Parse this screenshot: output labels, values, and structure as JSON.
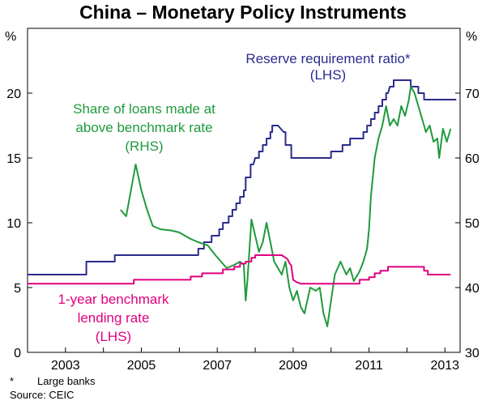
{
  "chart_data": {
    "type": "line",
    "title": "China – Monetary Policy Instruments",
    "left_axis": {
      "unit": "%",
      "ylim": [
        0,
        25
      ],
      "ticks": [
        0,
        5,
        10,
        15,
        20
      ]
    },
    "right_axis": {
      "unit": "%",
      "ylim": [
        30,
        80
      ],
      "ticks": [
        30,
        40,
        50,
        60,
        70
      ]
    },
    "x_range": [
      2002,
      2013.4
    ],
    "x_ticks": [
      "2003",
      "2005",
      "2007",
      "2009",
      "2011",
      "2013"
    ],
    "series": [
      {
        "name": "Reserve requirement ratio*",
        "axis_note": "(LHS)",
        "axis": "left",
        "color": "#2b2b8c",
        "points": [
          [
            2002.0,
            6.0
          ],
          [
            2003.55,
            6.0
          ],
          [
            2003.55,
            7.0
          ],
          [
            2004.0,
            7.0
          ],
          [
            2004.3,
            7.0
          ],
          [
            2004.3,
            7.5
          ],
          [
            2006.5,
            7.5
          ],
          [
            2006.5,
            8.0
          ],
          [
            2006.65,
            8.0
          ],
          [
            2006.65,
            8.5
          ],
          [
            2006.85,
            8.5
          ],
          [
            2006.85,
            9.0
          ],
          [
            2007.05,
            9.0
          ],
          [
            2007.05,
            9.5
          ],
          [
            2007.15,
            9.5
          ],
          [
            2007.15,
            10.0
          ],
          [
            2007.3,
            10.0
          ],
          [
            2007.3,
            10.5
          ],
          [
            2007.4,
            10.5
          ],
          [
            2007.4,
            11.0
          ],
          [
            2007.5,
            11.0
          ],
          [
            2007.5,
            11.5
          ],
          [
            2007.6,
            11.5
          ],
          [
            2007.6,
            12.0
          ],
          [
            2007.7,
            12.0
          ],
          [
            2007.7,
            12.5
          ],
          [
            2007.75,
            12.5
          ],
          [
            2007.75,
            13.5
          ],
          [
            2007.88,
            13.5
          ],
          [
            2007.88,
            14.5
          ],
          [
            2007.95,
            14.5
          ],
          [
            2008.0,
            15.0
          ],
          [
            2008.1,
            15.0
          ],
          [
            2008.1,
            15.5
          ],
          [
            2008.2,
            15.5
          ],
          [
            2008.2,
            16.0
          ],
          [
            2008.3,
            16.0
          ],
          [
            2008.3,
            16.5
          ],
          [
            2008.4,
            16.5
          ],
          [
            2008.4,
            17.0
          ],
          [
            2008.45,
            17.0
          ],
          [
            2008.45,
            17.5
          ],
          [
            2008.6,
            17.5
          ],
          [
            2008.75,
            17.0
          ],
          [
            2008.8,
            17.0
          ],
          [
            2008.8,
            16.0
          ],
          [
            2008.95,
            16.0
          ],
          [
            2008.95,
            15.0
          ],
          [
            2010.0,
            15.0
          ],
          [
            2010.0,
            15.5
          ],
          [
            2010.1,
            15.5
          ],
          [
            2010.3,
            15.5
          ],
          [
            2010.3,
            16.0
          ],
          [
            2010.5,
            16.0
          ],
          [
            2010.5,
            16.5
          ],
          [
            2010.85,
            16.5
          ],
          [
            2010.85,
            17.0
          ],
          [
            2010.95,
            17.0
          ],
          [
            2010.95,
            17.5
          ],
          [
            2011.05,
            17.5
          ],
          [
            2011.05,
            18.0
          ],
          [
            2011.15,
            18.0
          ],
          [
            2011.15,
            18.5
          ],
          [
            2011.25,
            18.5
          ],
          [
            2011.25,
            19.0
          ],
          [
            2011.35,
            19.0
          ],
          [
            2011.35,
            19.5
          ],
          [
            2011.45,
            19.5
          ],
          [
            2011.45,
            20.0
          ],
          [
            2011.5,
            20.0
          ],
          [
            2011.55,
            20.5
          ],
          [
            2011.65,
            20.5
          ],
          [
            2011.65,
            21.0
          ],
          [
            2012.1,
            21.0
          ],
          [
            2012.1,
            20.5
          ],
          [
            2012.3,
            20.5
          ],
          [
            2012.3,
            20.0
          ],
          [
            2012.45,
            20.0
          ],
          [
            2012.45,
            19.5
          ],
          [
            2013.3,
            19.5
          ]
        ]
      },
      {
        "name": "Share of loans made at above benchmark rate",
        "axis_note": "(RHS)",
        "axis": "right",
        "color": "#1f9a3c",
        "points": [
          [
            2004.45,
            52.0
          ],
          [
            2004.6,
            51.0
          ],
          [
            2004.85,
            59.0
          ],
          [
            2005.0,
            55.0
          ],
          [
            2005.15,
            52.0
          ],
          [
            2005.3,
            49.5
          ],
          [
            2005.5,
            49.0
          ],
          [
            2005.8,
            48.8
          ],
          [
            2006.0,
            48.5
          ],
          [
            2006.3,
            47.5
          ],
          [
            2006.5,
            47.0
          ],
          [
            2006.75,
            46.5
          ],
          [
            2006.95,
            45.0
          ],
          [
            2007.1,
            44.0
          ],
          [
            2007.25,
            43.0
          ],
          [
            2007.45,
            43.5
          ],
          [
            2007.6,
            44.0
          ],
          [
            2007.7,
            43.5
          ],
          [
            2007.75,
            38.0
          ],
          [
            2007.8,
            41.5
          ],
          [
            2007.9,
            50.5
          ],
          [
            2008.0,
            48.0
          ],
          [
            2008.1,
            45.5
          ],
          [
            2008.2,
            47.0
          ],
          [
            2008.3,
            50.0
          ],
          [
            2008.4,
            47.0
          ],
          [
            2008.5,
            44.0
          ],
          [
            2008.6,
            43.0
          ],
          [
            2008.7,
            42.0
          ],
          [
            2008.8,
            44.0
          ],
          [
            2008.9,
            40.0
          ],
          [
            2009.0,
            38.0
          ],
          [
            2009.1,
            39.5
          ],
          [
            2009.2,
            37.0
          ],
          [
            2009.3,
            36.0
          ],
          [
            2009.45,
            40.0
          ],
          [
            2009.6,
            39.5
          ],
          [
            2009.7,
            40.0
          ],
          [
            2009.8,
            36.0
          ],
          [
            2009.9,
            34.0
          ],
          [
            2010.0,
            38.0
          ],
          [
            2010.1,
            42.0
          ],
          [
            2010.25,
            44.0
          ],
          [
            2010.4,
            42.0
          ],
          [
            2010.5,
            43.0
          ],
          [
            2010.6,
            41.0
          ],
          [
            2010.75,
            42.5
          ],
          [
            2010.85,
            44.0
          ],
          [
            2010.95,
            46.0
          ],
          [
            2011.0,
            49.0
          ],
          [
            2011.05,
            54.0
          ],
          [
            2011.15,
            60.0
          ],
          [
            2011.25,
            63.0
          ],
          [
            2011.35,
            65.0
          ],
          [
            2011.45,
            68.0
          ],
          [
            2011.55,
            65.0
          ],
          [
            2011.65,
            66.0
          ],
          [
            2011.75,
            65.0
          ],
          [
            2011.85,
            68.0
          ],
          [
            2011.95,
            66.5
          ],
          [
            2012.05,
            69.0
          ],
          [
            2012.1,
            71.0
          ],
          [
            2012.2,
            70.0
          ],
          [
            2012.3,
            68.0
          ],
          [
            2012.4,
            66.0
          ],
          [
            2012.5,
            64.0
          ],
          [
            2012.6,
            65.0
          ],
          [
            2012.7,
            62.5
          ],
          [
            2012.8,
            63.0
          ],
          [
            2012.85,
            60.0
          ],
          [
            2012.95,
            64.5
          ],
          [
            2013.05,
            62.5
          ],
          [
            2013.15,
            64.5
          ]
        ]
      },
      {
        "name": "1-year benchmark lending rate",
        "axis_note": "(LHS)",
        "axis": "left",
        "color": "#e0007f",
        "points": [
          [
            2002.0,
            5.3
          ],
          [
            2004.8,
            5.3
          ],
          [
            2004.8,
            5.6
          ],
          [
            2006.3,
            5.6
          ],
          [
            2006.3,
            5.85
          ],
          [
            2006.6,
            5.85
          ],
          [
            2006.6,
            6.1
          ],
          [
            2007.15,
            6.1
          ],
          [
            2007.15,
            6.4
          ],
          [
            2007.45,
            6.4
          ],
          [
            2007.45,
            6.6
          ],
          [
            2007.6,
            6.6
          ],
          [
            2007.6,
            6.85
          ],
          [
            2007.75,
            6.85
          ],
          [
            2007.75,
            7.0
          ],
          [
            2007.9,
            7.0
          ],
          [
            2007.9,
            7.3
          ],
          [
            2008.0,
            7.3
          ],
          [
            2008.0,
            7.5
          ],
          [
            2008.7,
            7.5
          ],
          [
            2008.85,
            7.2
          ],
          [
            2008.9,
            6.9
          ],
          [
            2008.95,
            6.7
          ],
          [
            2009.0,
            5.6
          ],
          [
            2009.1,
            5.4
          ],
          [
            2009.2,
            5.3
          ],
          [
            2010.75,
            5.3
          ],
          [
            2010.75,
            5.6
          ],
          [
            2011.0,
            5.6
          ],
          [
            2011.0,
            5.8
          ],
          [
            2011.15,
            5.8
          ],
          [
            2011.15,
            6.1
          ],
          [
            2011.3,
            6.1
          ],
          [
            2011.3,
            6.3
          ],
          [
            2011.5,
            6.3
          ],
          [
            2011.5,
            6.6
          ],
          [
            2012.45,
            6.6
          ],
          [
            2012.45,
            6.3
          ],
          [
            2012.55,
            6.3
          ],
          [
            2012.55,
            6.0
          ],
          [
            2013.15,
            6.0
          ]
        ]
      }
    ]
  },
  "annotations": {
    "reserve_line1": "Reserve requirement ratio*",
    "reserve_line2": "(LHS)",
    "share_line1": "Share of loans made at",
    "share_line2": "above benchmark rate",
    "share_line3": "(RHS)",
    "lending_line1": "1-year benchmark",
    "lending_line2": "lending rate",
    "lending_line3": "(LHS)"
  },
  "footnotes": {
    "star": "*",
    "note": "Large banks",
    "source": "Source: CEIC"
  }
}
